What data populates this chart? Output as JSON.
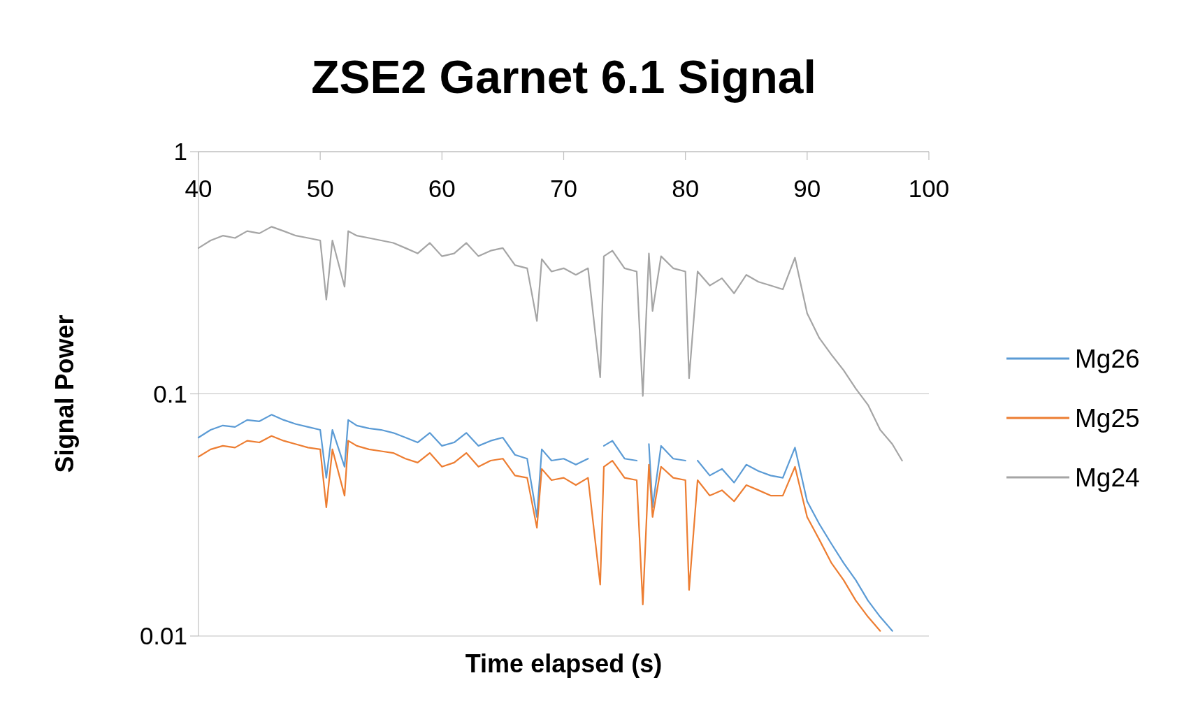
{
  "chart_data": {
    "type": "line",
    "title": "ZSE2 Garnet 6.1 Signal",
    "xlabel": "Time elapsed (s)",
    "ylabel": "Signal Power",
    "log": "y",
    "grid": "y",
    "legend": "right",
    "marker": "none",
    "line_style": "solid",
    "xlim": [
      40,
      100
    ],
    "xticks": [
      40,
      50,
      60,
      70,
      80,
      90,
      100
    ],
    "ylim": [
      0.01,
      1
    ],
    "yticks": [
      0.01,
      0.1,
      1
    ],
    "x": [
      40,
      41,
      42,
      43,
      44,
      45,
      46,
      47,
      48,
      49,
      50,
      50.5,
      51,
      52,
      52.3,
      53,
      54,
      55,
      56,
      57,
      58,
      59,
      60,
      61,
      62,
      63,
      64,
      65,
      66,
      67,
      67.8,
      68.2,
      69,
      70,
      71,
      72,
      73,
      73.3,
      74,
      75,
      76,
      76.5,
      77,
      77.3,
      78,
      79,
      80,
      80.3,
      81,
      82,
      83,
      84,
      85,
      86,
      87,
      88,
      89,
      90,
      91,
      92,
      93,
      94,
      95,
      96,
      97,
      97.8
    ],
    "series": [
      {
        "name": "Mg26",
        "color": "#5b9bd5",
        "values": [
          0.066,
          0.071,
          0.074,
          0.073,
          0.078,
          0.077,
          0.082,
          0.078,
          0.075,
          0.073,
          0.071,
          0.045,
          0.071,
          0.05,
          0.078,
          0.074,
          0.072,
          0.071,
          0.069,
          0.066,
          0.063,
          0.069,
          0.061,
          0.063,
          0.069,
          0.061,
          0.064,
          0.066,
          0.056,
          0.054,
          0.031,
          0.059,
          0.053,
          0.054,
          0.051,
          0.054,
          null,
          0.061,
          0.064,
          0.054,
          0.053,
          null,
          0.062,
          0.034,
          0.061,
          0.054,
          0.053,
          null,
          0.053,
          0.046,
          0.049,
          0.043,
          0.051,
          0.048,
          0.046,
          0.045,
          0.06,
          0.036,
          0.029,
          0.024,
          0.02,
          0.017,
          0.014,
          0.012,
          0.0105,
          null
        ]
      },
      {
        "name": "Mg25",
        "color": "#ed7d31",
        "values": [
          0.055,
          0.059,
          0.061,
          0.06,
          0.064,
          0.063,
          0.067,
          0.064,
          0.062,
          0.06,
          0.059,
          0.034,
          0.059,
          0.038,
          0.064,
          0.061,
          0.059,
          0.058,
          0.057,
          0.054,
          0.052,
          0.057,
          0.05,
          0.052,
          0.057,
          0.05,
          0.053,
          0.054,
          0.046,
          0.045,
          0.028,
          0.049,
          0.044,
          0.045,
          0.042,
          0.045,
          0.0163,
          0.05,
          0.053,
          0.045,
          0.044,
          0.0135,
          0.051,
          0.031,
          0.05,
          0.045,
          0.044,
          0.0155,
          0.044,
          0.038,
          0.04,
          0.036,
          0.042,
          0.04,
          0.038,
          0.038,
          0.05,
          0.031,
          0.025,
          0.02,
          0.017,
          0.014,
          0.012,
          0.0105,
          null,
          null
        ]
      },
      {
        "name": "Mg24",
        "color": "#a5a5a5",
        "values": [
          0.4,
          0.43,
          0.45,
          0.44,
          0.47,
          0.46,
          0.49,
          0.47,
          0.45,
          0.44,
          0.43,
          0.245,
          0.43,
          0.277,
          0.47,
          0.45,
          0.44,
          0.43,
          0.42,
          0.4,
          0.38,
          0.42,
          0.37,
          0.38,
          0.42,
          0.37,
          0.39,
          0.4,
          0.34,
          0.33,
          0.2,
          0.36,
          0.32,
          0.33,
          0.31,
          0.33,
          0.117,
          0.37,
          0.39,
          0.33,
          0.32,
          0.098,
          0.38,
          0.22,
          0.37,
          0.33,
          0.32,
          0.116,
          0.32,
          0.28,
          0.3,
          0.26,
          0.31,
          0.29,
          0.28,
          0.27,
          0.365,
          0.215,
          0.17,
          0.145,
          0.125,
          0.105,
          0.09,
          0.071,
          0.062,
          0.053
        ]
      }
    ]
  }
}
